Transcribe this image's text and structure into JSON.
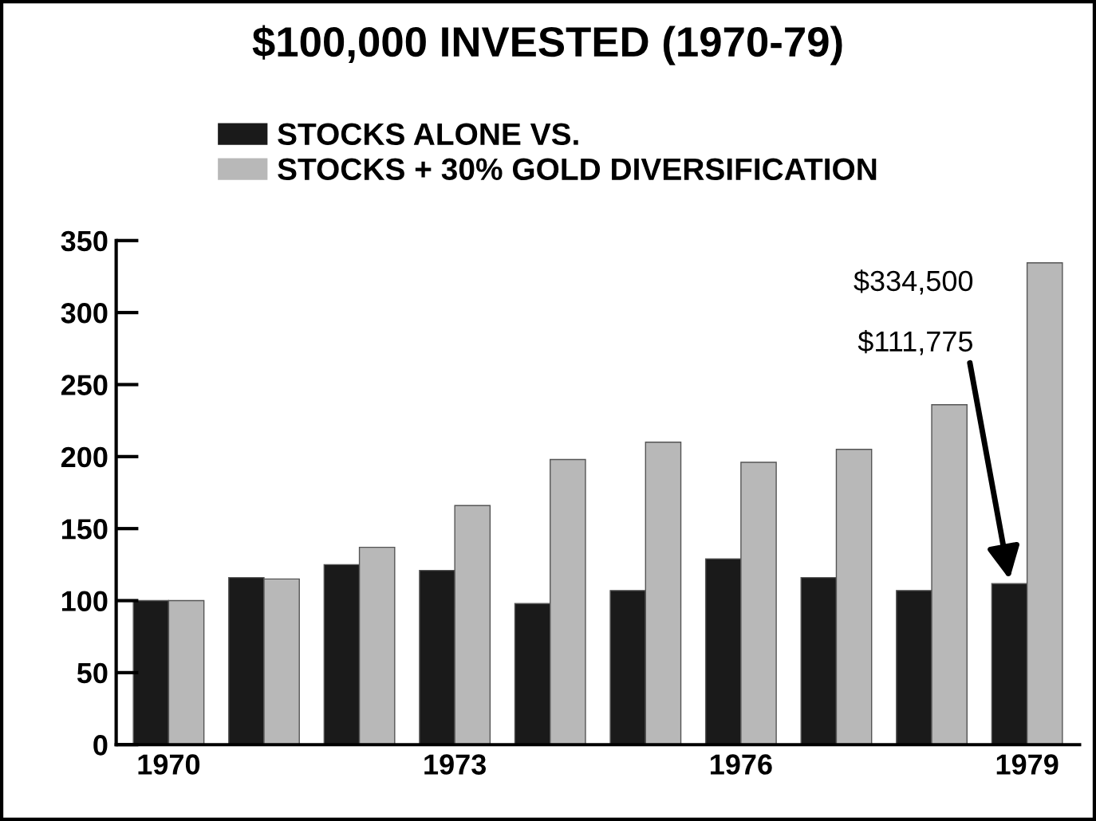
{
  "chart_data": {
    "type": "bar",
    "title": "$100,000 INVESTED (1970-79)",
    "categories": [
      "1970",
      null,
      null,
      "1973",
      null,
      null,
      "1976",
      null,
      null,
      "1979"
    ],
    "series": [
      {
        "name": "STOCKS ALONE VS.",
        "color": "#1a1a1a",
        "values": [
          100,
          116,
          125,
          121,
          98,
          107,
          129,
          116,
          107,
          111.775
        ]
      },
      {
        "name": "STOCKS + 30% GOLD DIVERSIFICATION",
        "color": "#b8b8b8",
        "values": [
          100,
          115,
          137,
          166,
          198,
          210,
          196,
          205,
          236,
          334.5
        ]
      }
    ],
    "ylim": [
      0,
      350
    ],
    "yticks": [
      0,
      50,
      100,
      150,
      200,
      250,
      300,
      350
    ],
    "annotations": [
      "$334,500",
      "$111,775"
    ],
    "legend": "top",
    "grid": false
  }
}
